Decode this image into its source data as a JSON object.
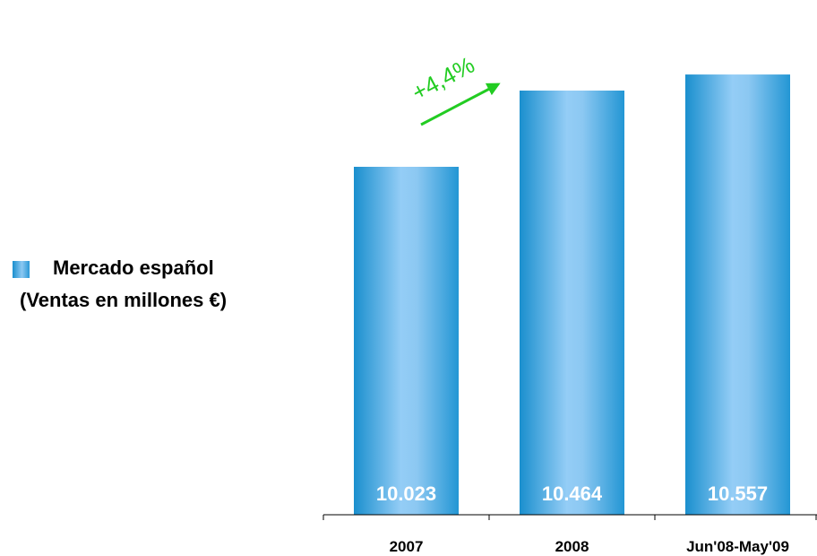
{
  "legend": {
    "label": "Mercado español",
    "sublabel": "(Ventas en millones €)",
    "color": "#2b98d6"
  },
  "chart_data": {
    "type": "bar",
    "categories": [
      "2007",
      "2008",
      "Jun'08-May'09"
    ],
    "values": [
      10023,
      10464,
      10557
    ],
    "data_labels": [
      "10.023",
      "10.464",
      "10.557"
    ],
    "annotation": {
      "text": "+4,4%",
      "from": "2007",
      "to": "2008",
      "color": "#22cc22"
    },
    "bar_color_edge": "#1a8fce",
    "bar_color_center": "#94cdf6",
    "grid": false,
    "legend_position": "left"
  }
}
